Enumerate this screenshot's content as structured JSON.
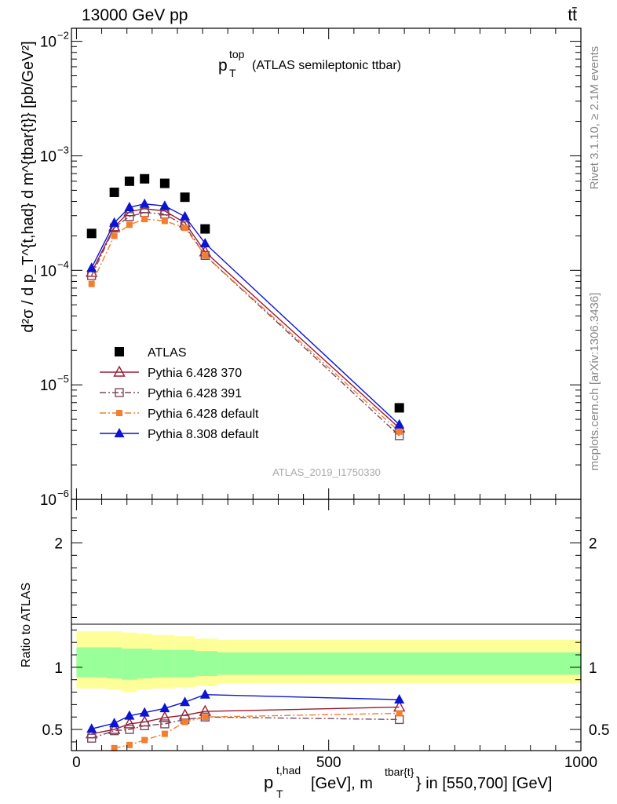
{
  "header": {
    "left": "13000 GeV pp",
    "right": "tt̄"
  },
  "side_labels": {
    "rivet": "Rivet 3.1.10, ≥ 2.1M events",
    "mcplots": "mcplots.cern.ch [arXiv:1306.3436]"
  },
  "chart_data": [
    {
      "type": "scatter",
      "title": "p_T^top (ATLAS semileptonic ttbar)",
      "title_parts": {
        "p": "p",
        "sup": "top",
        "sub": "T",
        "rest": "(ATLAS semileptonic ttbar)"
      },
      "ylabel": "d²σ / d p_T^{t,had} d m^{tbar{t}} [pb/GeV²]",
      "yscale": "log",
      "ylim": [
        1e-06,
        0.013
      ],
      "xlim": [
        -10,
        1000
      ],
      "y_ticks": [
        {
          "value": 1e-06,
          "label": "10",
          "exp": "−6"
        },
        {
          "value": 1e-05,
          "label": "10",
          "exp": "−5"
        },
        {
          "value": 0.0001,
          "label": "10",
          "exp": "−4"
        },
        {
          "value": 0.001,
          "label": "10",
          "exp": "−3"
        },
        {
          "value": 0.01,
          "label": "10",
          "exp": "−2"
        }
      ],
      "analysis_label": "ATLAS_2019_I1750330",
      "legend_position": "bottom-left",
      "series": [
        {
          "name": "ATLAS",
          "color": "#000000",
          "marker": "filled-square",
          "x": [
            30,
            75,
            105,
            135,
            175,
            215,
            255,
            640
          ],
          "y": [
            0.00021,
            0.00048,
            0.0006,
            0.00063,
            0.000575,
            0.000435,
            0.00023,
            6.3e-06
          ]
        },
        {
          "name": "Pythia 6.428 370",
          "color": "#9b1b30",
          "marker": "open-triangle",
          "line": "solid",
          "x": [
            30,
            75,
            105,
            135,
            175,
            215,
            255,
            640
          ],
          "y": [
            9.6e-05,
            0.00024,
            0.000325,
            0.000345,
            0.00033,
            0.00026,
            0.000145,
            4.2e-06
          ]
        },
        {
          "name": "Pythia 6.428 391",
          "color": "#7a4a5e",
          "marker": "open-square",
          "line": "dashdot",
          "x": [
            30,
            75,
            105,
            135,
            175,
            215,
            255,
            640
          ],
          "y": [
            9e-05,
            0.000235,
            0.000295,
            0.00032,
            0.00031,
            0.000245,
            0.000135,
            3.6e-06
          ]
        },
        {
          "name": "Pythia 6.428 default",
          "color": "#f47e30",
          "marker": "filled-square-small",
          "line": "dashdot",
          "x": [
            30,
            75,
            105,
            135,
            175,
            215,
            255,
            640
          ],
          "y": [
            7.6e-05,
            0.0002,
            0.00025,
            0.00028,
            0.00027,
            0.000235,
            0.000135,
            3.9e-06
          ]
        },
        {
          "name": "Pythia 8.308 default",
          "color": "#0a14d2",
          "marker": "filled-triangle",
          "line": "solid",
          "x": [
            30,
            75,
            105,
            135,
            175,
            215,
            255,
            640
          ],
          "y": [
            0.000105,
            0.00026,
            0.000355,
            0.00038,
            0.000365,
            0.000295,
            0.000172,
            4.5e-06
          ]
        }
      ]
    },
    {
      "type": "scatter",
      "ylabel": "Ratio to ATLAS",
      "ylim": [
        0.33,
        2.35
      ],
      "xlim": [
        -10,
        1000
      ],
      "y_ticks": [
        0.5,
        1,
        2
      ],
      "x_ticks": [
        0,
        500,
        1000
      ],
      "xlabel": "p_T^{t,had} [GeV], m^{tbar{t}} in [550,700] [GeV]",
      "xlabel_parts": {
        "p": "p",
        "sup": "t,had",
        "sub": "T",
        "mid": "[GeV], m",
        "sup2": "tbar{t}",
        "rest": "} in [550,700] [GeV]"
      },
      "bands": {
        "x_edges": [
          0,
          60,
          90,
          120,
          150,
          195,
          235,
          280,
          1000
        ],
        "outer_low": [
          0.83,
          0.82,
          0.8,
          0.82,
          0.83,
          0.84,
          0.85,
          0.87,
          0.87
        ],
        "outer_high": [
          1.29,
          1.29,
          1.28,
          1.27,
          1.26,
          1.25,
          1.23,
          1.22,
          1.22
        ],
        "inner_low": [
          0.92,
          0.91,
          0.9,
          0.91,
          0.92,
          0.92,
          0.93,
          0.94,
          0.94
        ],
        "inner_high": [
          1.16,
          1.16,
          1.15,
          1.15,
          1.14,
          1.14,
          1.13,
          1.12,
          1.12
        ],
        "outer_color": "#ffff99",
        "inner_color": "#99ff99"
      },
      "series": [
        {
          "name": "Pythia 6.428 370",
          "color": "#9b1b30",
          "marker": "open-triangle",
          "line": "solid",
          "x": [
            30,
            75,
            105,
            135,
            175,
            215,
            255,
            640
          ],
          "y": [
            0.465,
            0.5,
            0.545,
            0.56,
            0.595,
            0.615,
            0.645,
            0.68
          ]
        },
        {
          "name": "Pythia 6.428 391",
          "color": "#7a4a5e",
          "marker": "open-square",
          "line": "dashdot",
          "x": [
            30,
            75,
            105,
            135,
            175,
            215,
            255,
            640
          ],
          "y": [
            0.43,
            0.49,
            0.5,
            0.53,
            0.545,
            0.58,
            0.6,
            0.58
          ]
        },
        {
          "name": "Pythia 6.428 default",
          "color": "#f47e30",
          "marker": "filled-square-small",
          "line": "dashdot",
          "x": [
            75,
            105,
            135,
            175,
            215,
            255,
            640
          ],
          "y": [
            0.35,
            0.375,
            0.415,
            0.465,
            0.56,
            0.6,
            0.63
          ]
        },
        {
          "name": "Pythia 8.308 default",
          "color": "#0a14d2",
          "marker": "filled-triangle",
          "line": "solid",
          "x": [
            30,
            75,
            105,
            135,
            175,
            215,
            255,
            640
          ],
          "y": [
            0.505,
            0.55,
            0.61,
            0.635,
            0.67,
            0.72,
            0.78,
            0.74
          ]
        }
      ]
    }
  ]
}
